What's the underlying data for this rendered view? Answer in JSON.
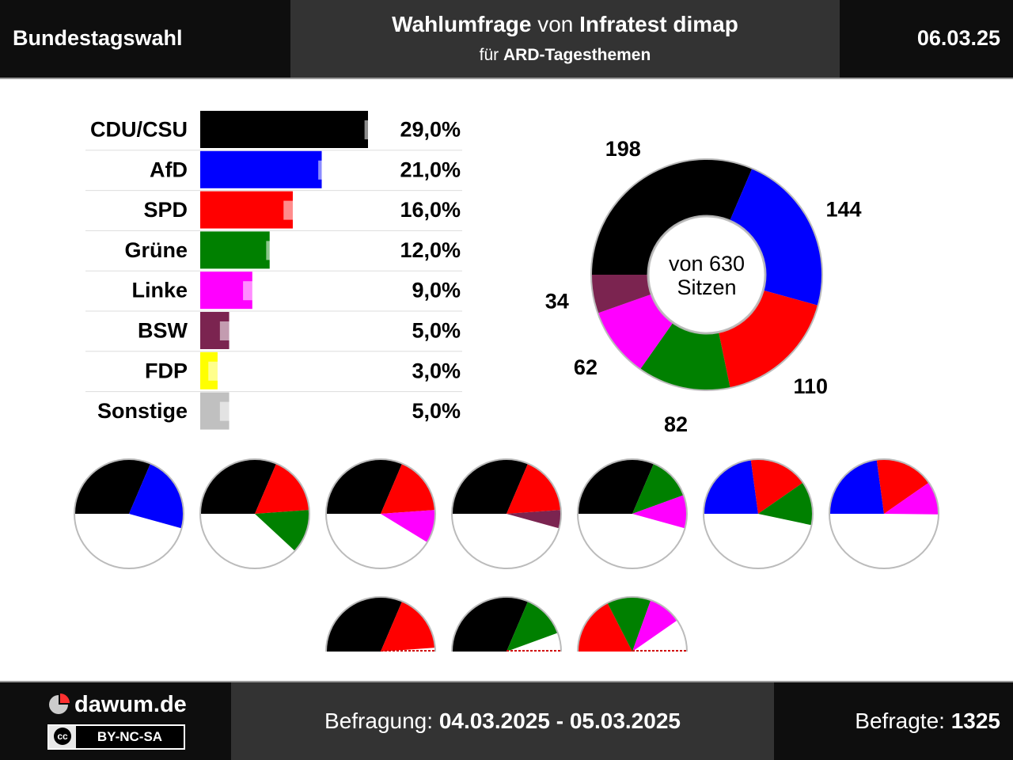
{
  "header": {
    "election": "Bundestagswahl",
    "title_bold1": "Wahlumfrage",
    "title_plain": " von ",
    "title_bold2": "Infratest dimap",
    "sub_plain": "für ",
    "sub_bold": "ARD-Tagesthemen",
    "date": "06.03.25"
  },
  "footer": {
    "brand": "dawum.de",
    "license": "BY-NC-SA",
    "license_icon": "cc",
    "survey_label": "Befragung: ",
    "survey_dates": "04.03.2025 - 05.03.2025",
    "respondents_label": "Befragte: ",
    "respondents": "1325"
  },
  "chart_data": [
    {
      "type": "bar",
      "orientation": "horizontal",
      "categories": [
        "CDU/CSU",
        "AfD",
        "SPD",
        "Grüne",
        "Linke",
        "BSW",
        "FDP",
        "Sonstige"
      ],
      "values": [
        29.0,
        21.0,
        16.0,
        12.0,
        9.0,
        5.0,
        3.0,
        5.0
      ],
      "previous_values": [
        31.0,
        23.0,
        17.0,
        14.0,
        10.0,
        6.0,
        4.0,
        6.0
      ],
      "labels": [
        "29,0%",
        "21,0%",
        "16,0%",
        "12,0%",
        "9,0%",
        "5,0%",
        "3,0%",
        "5,0%"
      ],
      "colors": [
        "#000000",
        "#0000ff",
        "#ff0000",
        "#008000",
        "#ff00ff",
        "#7b2450",
        "#ffff00",
        "#c0c0c0"
      ],
      "xlim": [
        0,
        50
      ]
    },
    {
      "type": "pie",
      "subtype": "donut",
      "center_label": [
        "von 630",
        "Sitzen"
      ],
      "total": 630,
      "slices": [
        {
          "party": "CDU/CSU",
          "value": 198,
          "color": "#000000"
        },
        {
          "party": "AfD",
          "value": 144,
          "color": "#0000ff"
        },
        {
          "party": "SPD",
          "value": 110,
          "color": "#ff0000"
        },
        {
          "party": "Grüne",
          "value": 82,
          "color": "#008000"
        },
        {
          "party": "Linke",
          "value": 62,
          "color": "#ff00ff"
        },
        {
          "party": "BSW",
          "value": 34,
          "color": "#7b2450"
        }
      ]
    },
    {
      "type": "pie",
      "subtype": "coalitions",
      "coalitions": [
        {
          "parties": [
            {
              "value": 198,
              "color": "#000000"
            },
            {
              "value": 144,
              "color": "#0000ff"
            }
          ],
          "majority": true
        },
        {
          "parties": [
            {
              "value": 198,
              "color": "#000000"
            },
            {
              "value": 110,
              "color": "#ff0000"
            },
            {
              "value": 82,
              "color": "#008000"
            }
          ],
          "majority": true
        },
        {
          "parties": [
            {
              "value": 198,
              "color": "#000000"
            },
            {
              "value": 110,
              "color": "#ff0000"
            },
            {
              "value": 62,
              "color": "#ff00ff"
            }
          ],
          "majority": true
        },
        {
          "parties": [
            {
              "value": 198,
              "color": "#000000"
            },
            {
              "value": 110,
              "color": "#ff0000"
            },
            {
              "value": 34,
              "color": "#7b2450"
            }
          ],
          "majority": true
        },
        {
          "parties": [
            {
              "value": 198,
              "color": "#000000"
            },
            {
              "value": 82,
              "color": "#008000"
            },
            {
              "value": 62,
              "color": "#ff00ff"
            }
          ],
          "majority": true
        },
        {
          "parties": [
            {
              "value": 144,
              "color": "#0000ff"
            },
            {
              "value": 110,
              "color": "#ff0000"
            },
            {
              "value": 82,
              "color": "#008000"
            }
          ],
          "majority": true
        },
        {
          "parties": [
            {
              "value": 144,
              "color": "#0000ff"
            },
            {
              "value": 110,
              "color": "#ff0000"
            },
            {
              "value": 62,
              "color": "#ff00ff"
            }
          ],
          "majority": true
        },
        {
          "parties": [
            {
              "value": 198,
              "color": "#000000"
            },
            {
              "value": 110,
              "color": "#ff0000"
            }
          ],
          "majority": false
        },
        {
          "parties": [
            {
              "value": 198,
              "color": "#000000"
            },
            {
              "value": 82,
              "color": "#008000"
            }
          ],
          "majority": false
        },
        {
          "parties": [
            {
              "value": 110,
              "color": "#ff0000"
            },
            {
              "value": 82,
              "color": "#008000"
            },
            {
              "value": 62,
              "color": "#ff00ff"
            }
          ],
          "majority": false
        }
      ]
    }
  ]
}
